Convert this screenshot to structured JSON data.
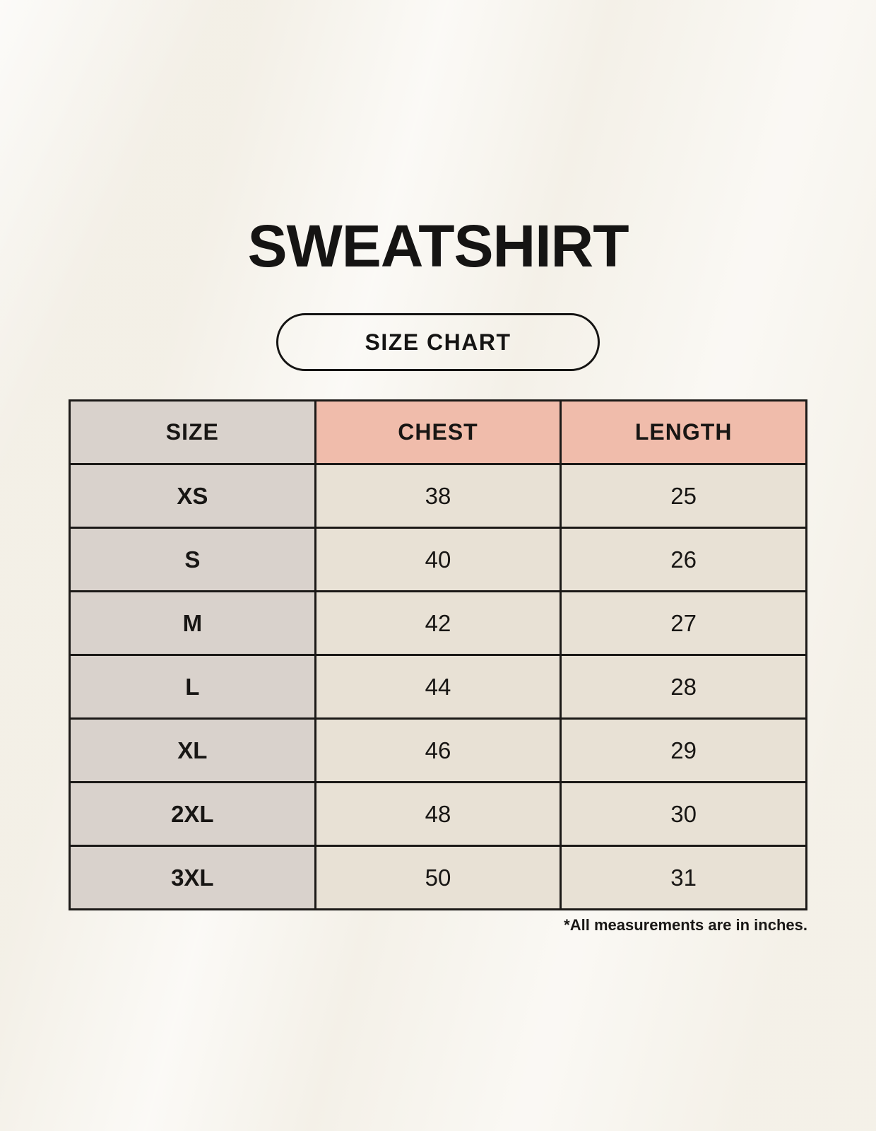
{
  "page": {
    "title": "SWEATSHIRT",
    "size_chart_button": "SIZE CHART",
    "footnote": "*All measurements are in inches."
  },
  "table": {
    "columns": [
      {
        "key": "size",
        "label": "SIZE"
      },
      {
        "key": "chest",
        "label": "CHEST"
      },
      {
        "key": "length",
        "label": "LENGTH"
      }
    ],
    "rows": [
      {
        "size": "XS",
        "chest": "38",
        "length": "25"
      },
      {
        "size": "S",
        "chest": "40",
        "length": "26"
      },
      {
        "size": "M",
        "chest": "42",
        "length": "27"
      },
      {
        "size": "L",
        "chest": "44",
        "length": "28"
      },
      {
        "size": "XL",
        "chest": "46",
        "length": "29"
      },
      {
        "size": "2XL",
        "chest": "48",
        "length": "30"
      },
      {
        "size": "3XL",
        "chest": "50",
        "length": "31"
      }
    ]
  },
  "colors": {
    "background": "#f7f4ed",
    "table_border": "#1b1917",
    "header_size_bg": "#d9d2cc",
    "header_measurement_bg": "#f0bcab",
    "size_column_bg": "#d9d2cc",
    "value_cell_bg": "#e8e1d5",
    "text": "#181614"
  }
}
